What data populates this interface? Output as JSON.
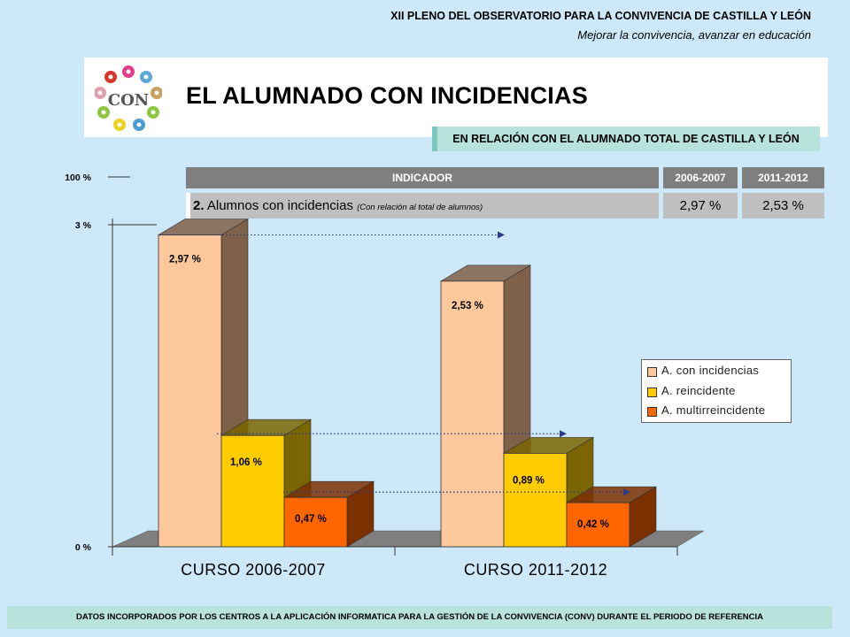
{
  "header": {
    "title": "XII PLENO DEL OBSERVATORIO PARA LA CONVIVENCIA DE CASTILLA Y LEÓN",
    "subtitle": "Mejorar la convivencia, avanzar en educación"
  },
  "logo": {
    "text": "CON"
  },
  "main_title": "EL ALUMNADO CON INCIDENCIAS",
  "relation_banner": "EN RELACIÓN CON EL ALUMNADO TOTAL DE CASTILLA Y LEÓN",
  "indicator_table": {
    "headers": [
      "INDICADOR",
      "2006-2007",
      "2011-2012"
    ],
    "row": {
      "number": "2.",
      "label": "Alumnos con incidencias",
      "note": "(Con relación al total de alumnos)",
      "values": [
        "2,97 %",
        "2,53 %"
      ]
    }
  },
  "chart_data": {
    "type": "bar",
    "categories": [
      "CURSO 2006-2007",
      "CURSO 2011-2012"
    ],
    "series": [
      {
        "name": "A. con incidencias",
        "values": [
          2.97,
          2.53
        ],
        "labels": [
          "2,97 %",
          "2,53 %"
        ],
        "color": "#fdc99c",
        "side_color": "#7f6048"
      },
      {
        "name": "A. reincidente",
        "values": [
          1.06,
          0.89
        ],
        "labels": [
          "1,06 %",
          "0,89 %"
        ],
        "color": "#ffcc00",
        "side_color": "#7a6500"
      },
      {
        "name": "A. multirreincidente",
        "values": [
          0.47,
          0.42
        ],
        "labels": [
          "0,47 %",
          "0,42 %"
        ],
        "color": "#ff6600",
        "side_color": "#7a3000"
      }
    ],
    "y_tick_labels": [
      "0 %",
      "3 %",
      "100 %"
    ],
    "y_ticks": [
      0,
      3
    ],
    "ylim": [
      0,
      3
    ],
    "axis_break": true,
    "legend_position": "right",
    "three_d": true
  },
  "footer": "DATOS INCORPORADOS POR LOS CENTROS A LA APLICACIÓN INFORMATICA PARA LA GESTIÓN DE LA CONVIVENCIA (CONV) DURANTE EL PERIODO DE REFERENCIA"
}
